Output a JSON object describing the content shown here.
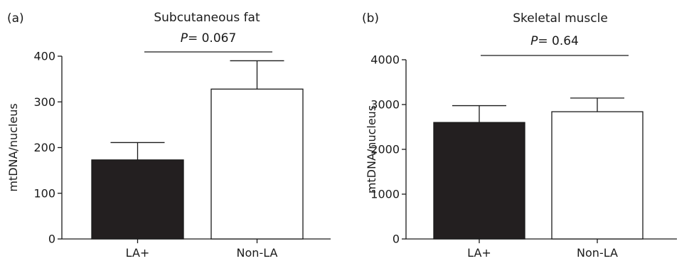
{
  "chart_data": [
    {
      "type": "bar",
      "panel_label": "(a)",
      "title": "Subcutaneous fat",
      "p_label": "P",
      "p_value": "= 0.067",
      "ylabel": "mtDNA/nucleus",
      "categories": [
        "LA+",
        "Non-LA"
      ],
      "values": [
        173,
        328
      ],
      "error_upper": [
        211,
        390
      ],
      "ylim": [
        0,
        400
      ],
      "yticks": [
        0,
        100,
        200,
        300,
        400
      ],
      "bar_fills": [
        "#231f20",
        "#ffffff"
      ],
      "grid": false
    },
    {
      "type": "bar",
      "panel_label": "(b)",
      "title": "Skeletal muscle",
      "p_label": "P",
      "p_value": "= 0.64",
      "ylabel": "mtDNA/nucleus",
      "categories": [
        "LA+",
        "Non-LA"
      ],
      "values": [
        2600,
        2840
      ],
      "error_upper": [
        2975,
        3145
      ],
      "ylim": [
        0,
        4000
      ],
      "yticks": [
        0,
        1000,
        2000,
        3000,
        4000
      ],
      "bar_fills": [
        "#231f20",
        "#ffffff"
      ],
      "grid": false
    }
  ]
}
